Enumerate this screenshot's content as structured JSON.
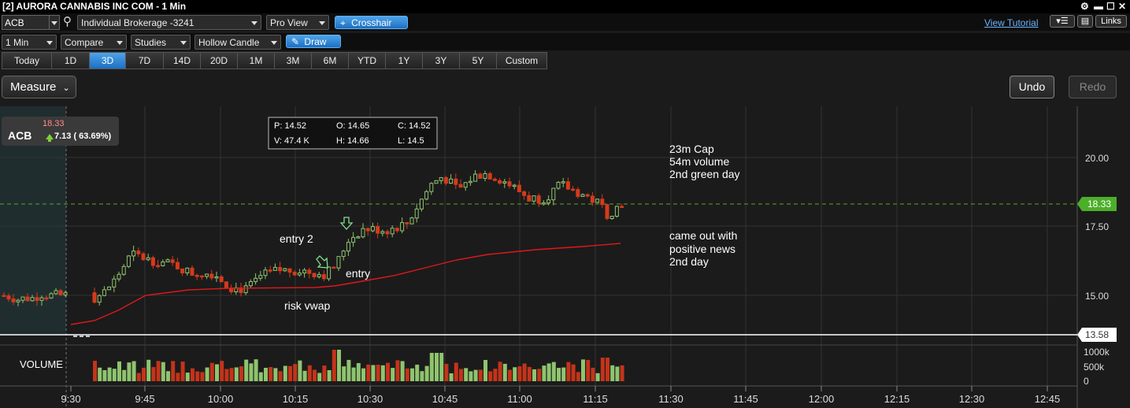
{
  "window": {
    "title": "[2] AURORA CANNABIS INC COM - 1 Min"
  },
  "toolbar": {
    "symbol": "ACB",
    "account": "Individual Brokerage -3241",
    "view": "Pro View",
    "crosshair_label": "Crosshair",
    "view_tutorial": "View Tutorial",
    "links_label": "Links",
    "interval": "1 Min",
    "compare": "Compare",
    "studies": "Studies",
    "candle_type": "Hollow Candle",
    "draw_label": "Draw"
  },
  "ranges": [
    "Today",
    "1D",
    "3D",
    "7D",
    "14D",
    "20D",
    "1M",
    "3M",
    "6M",
    "YTD",
    "1Y",
    "3Y",
    "5Y",
    "Custom"
  ],
  "active_range": "3D",
  "measure_label": "Measure",
  "undo_label": "Undo",
  "redo_label": "Redo",
  "quote": {
    "symbol": "ACB",
    "price": "18.33",
    "change": "7.13 ( 63.69%)"
  },
  "ohlc": {
    "p": "P: 14.52",
    "o": "O: 14.65",
    "c": "C: 14.52",
    "v": "V: 47.4 K",
    "h": "H: 14.66",
    "l": "L: 14.5"
  },
  "price_axis": {
    "ticks": [
      "20.00",
      "17.50",
      "15.00"
    ],
    "current": "18.33",
    "low_line": "13.58"
  },
  "volume": {
    "label": "VOLUME",
    "ticks": [
      "1000k",
      "500k",
      "0"
    ]
  },
  "time_axis": [
    "9:30",
    "9:45",
    "10:00",
    "10:15",
    "10:30",
    "10:45",
    "11:00",
    "11:15",
    "11:30",
    "11:45",
    "12:00",
    "12:15",
    "12:30",
    "12:45"
  ],
  "annotations": {
    "notes_top": [
      "23m Cap",
      "54m volume",
      "2nd green day"
    ],
    "notes_bottom": [
      "came out with",
      "positive news",
      "2nd day"
    ],
    "entry2": "entry 2",
    "entry": "entry",
    "risk": "risk vwap"
  },
  "colors": {
    "up": "#8fc46e",
    "down": "#d43a1c",
    "vwap": "#e01818",
    "accent": "#2b86d8",
    "current_price": "#4caf2a"
  }
}
